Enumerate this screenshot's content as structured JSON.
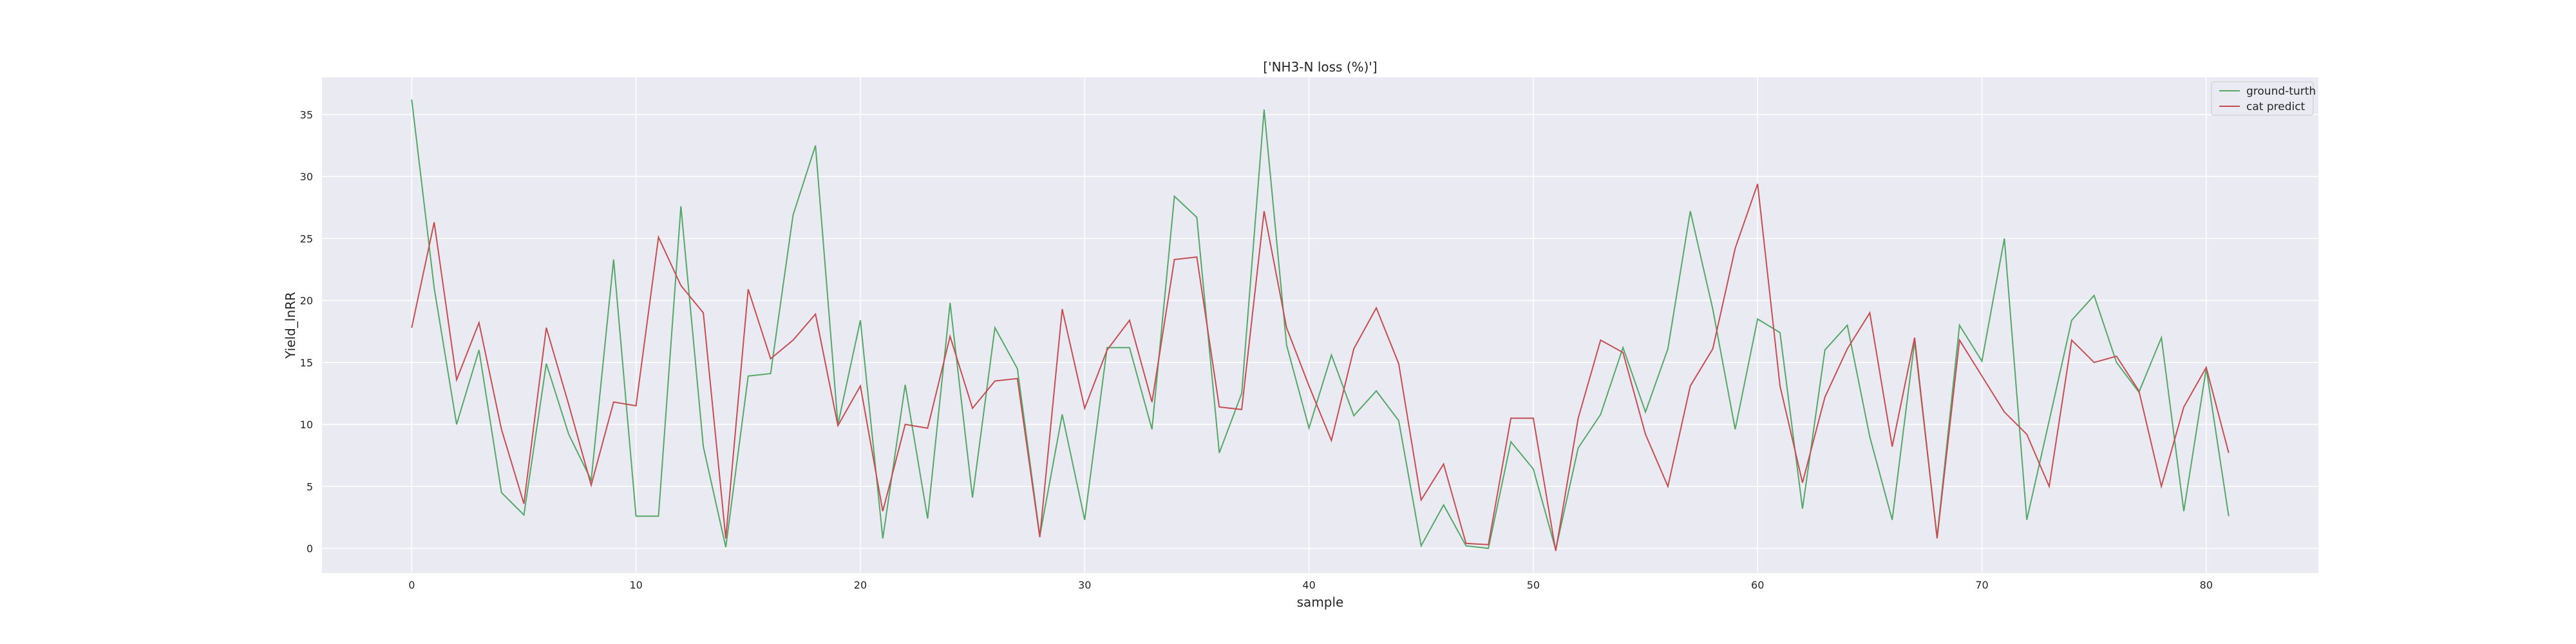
{
  "chart_data": {
    "type": "line",
    "title": "['NH3-N loss (%)']",
    "xlabel": "sample",
    "ylabel": "Yield_lnRR",
    "xlim": [
      -4,
      85
    ],
    "ylim": [
      -2,
      38
    ],
    "xticks": [
      0,
      10,
      20,
      30,
      40,
      50,
      60,
      70,
      80
    ],
    "yticks": [
      0,
      5,
      10,
      15,
      20,
      25,
      30,
      35
    ],
    "grid": true,
    "legend_position": "top-right",
    "series": [
      {
        "name": "ground-turth",
        "color": "#55a868",
        "values": [
          36.2,
          21.0,
          10.0,
          16.0,
          4.5,
          2.7,
          14.9,
          9.2,
          5.5,
          23.3,
          2.6,
          2.6,
          27.6,
          8.2,
          0.1,
          13.9,
          14.1,
          26.9,
          32.5,
          10.0,
          18.4,
          0.8,
          13.2,
          2.4,
          19.8,
          4.1,
          17.8,
          14.5,
          1.0,
          10.8,
          2.3,
          16.2,
          16.2,
          9.6,
          28.4,
          26.7,
          7.7,
          12.5,
          35.4,
          16.4,
          9.7,
          15.6,
          10.7,
          12.7,
          10.3,
          0.2,
          3.5,
          0.2,
          0.0,
          8.6,
          6.4,
          -0.1,
          8.1,
          10.8,
          16.2,
          11.0,
          16.1,
          27.2,
          19.3,
          9.6,
          18.5,
          17.4,
          3.2,
          16.0,
          18.0,
          9.0,
          2.3,
          16.7,
          0.9,
          18.0,
          15.1,
          25.0,
          2.3,
          10.3,
          18.4,
          20.4,
          15.0,
          12.6,
          17.0,
          3.0,
          14.5,
          2.6
        ]
      },
      {
        "name": "cat predict",
        "color": "#c44e52",
        "values": [
          17.8,
          26.3,
          13.6,
          18.2,
          9.6,
          3.6,
          17.8,
          11.6,
          5.1,
          11.8,
          11.5,
          25.1,
          21.2,
          19.0,
          0.8,
          20.9,
          15.3,
          16.8,
          18.9,
          9.9,
          13.1,
          3.0,
          10.0,
          9.7,
          17.1,
          11.3,
          13.5,
          13.7,
          0.9,
          19.3,
          11.3,
          16.0,
          18.4,
          11.8,
          23.3,
          23.5,
          11.4,
          11.2,
          27.2,
          17.8,
          13.1,
          8.7,
          16.1,
          19.4,
          14.9,
          3.9,
          6.8,
          0.4,
          0.3,
          10.5,
          10.5,
          -0.2,
          10.5,
          16.8,
          15.8,
          9.2,
          5.0,
          13.1,
          16.1,
          24.2,
          29.4,
          13.1,
          5.3,
          12.2,
          16.1,
          19.0,
          8.2,
          17.0,
          0.8,
          16.8,
          13.9,
          11.0,
          9.2,
          5.0,
          16.8,
          15.0,
          15.5,
          12.7,
          5.0,
          11.4,
          14.6,
          7.7
        ]
      }
    ]
  }
}
